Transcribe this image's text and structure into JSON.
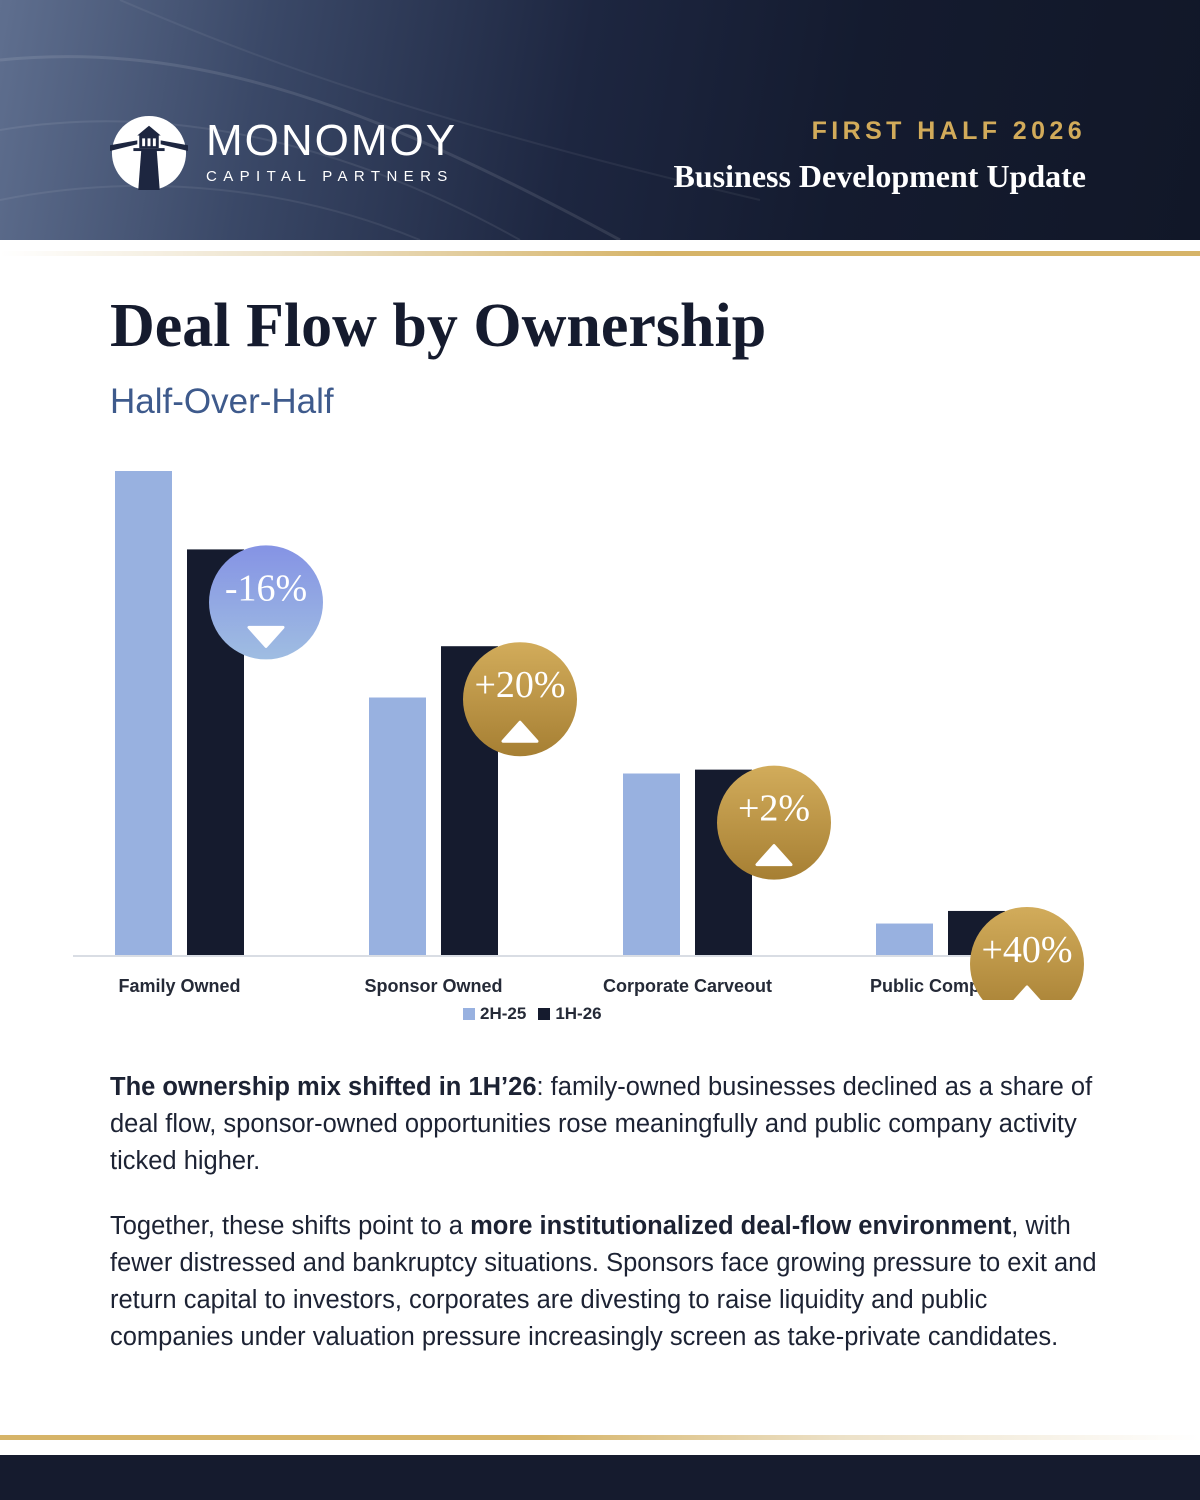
{
  "header": {
    "brand": "MONOMOY",
    "brand_sub": "CAPITAL PARTNERS",
    "kicker": "FIRST HALF 2026",
    "title": "Business Development Update"
  },
  "page": {
    "title": "Deal Flow by Ownership",
    "subtitle": "Half-Over-Half"
  },
  "chart_data": {
    "type": "bar",
    "categories": [
      "Family Owned",
      "Sponsor Owned",
      "Corporate Carveout",
      "Public Company"
    ],
    "series": [
      {
        "name": "2H-25",
        "values": [
          100,
          53.2,
          37.5,
          6.5
        ],
        "color": "#98b1e0"
      },
      {
        "name": "1H-26",
        "values": [
          83.8,
          63.8,
          38.3,
          9.1
        ],
        "color": "#151b2e"
      }
    ],
    "changes": [
      {
        "label": "-16%",
        "direction": "down",
        "style": "blue"
      },
      {
        "label": "+20%",
        "direction": "up",
        "style": "gold"
      },
      {
        "label": "+2%",
        "direction": "up",
        "style": "gold"
      },
      {
        "label": "+40%",
        "direction": "up",
        "style": "gold"
      }
    ],
    "ylim": [
      0,
      100
    ],
    "grid": false,
    "legend": "bottom-center",
    "title": "",
    "xlabel": "",
    "ylabel": ""
  },
  "body": {
    "p1_bold": "The ownership mix shifted in 1H’26",
    "p1_rest": ": family-owned businesses declined as a share of deal flow, sponsor-owned opportunities rose meaningfully and public company activity ticked higher.",
    "p2_start": "Together, these shifts point to a ",
    "p2_bold": "more institutionalized deal-flow environment",
    "p2_rest": ", with fewer distressed and bankruptcy situations. Sponsors face growing pressure to exit and return capital to investors, corporates are divesting to raise liquidity and public companies under valuation pressure increasingly screen as take-private candidates."
  },
  "colors": {
    "navy": "#151b2e",
    "gold": "#c9a961",
    "light_blue": "#98b1e0",
    "subtitle_blue": "#3e5a8c"
  }
}
